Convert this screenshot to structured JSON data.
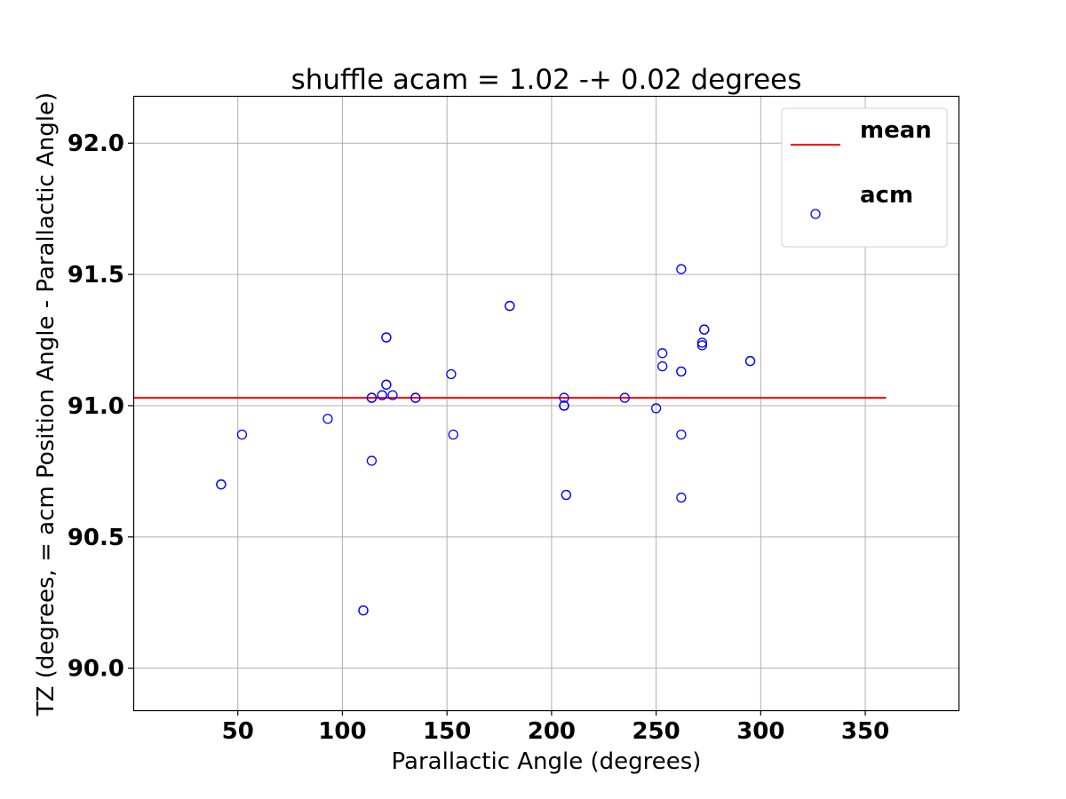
{
  "chart_data": {
    "type": "scatter",
    "title": "shuffle acam = 1.02 -+ 0.02  degrees",
    "xlabel": "Parallactic Angle (degrees)",
    "ylabel": "TZ (degrees, = acm Position Angle - Parallactic Angle)",
    "xlim": [
      0,
      395
    ],
    "ylim": [
      89.84,
      92.18
    ],
    "xticks": [
      50,
      100,
      150,
      200,
      250,
      300,
      350
    ],
    "yticks": [
      90.0,
      90.5,
      91.0,
      91.5,
      92.0
    ],
    "xtick_labels": [
      "50",
      "100",
      "150",
      "200",
      "250",
      "300",
      "350"
    ],
    "ytick_labels": [
      "90.0",
      "90.5",
      "91.0",
      "91.5",
      "92.0"
    ],
    "grid": true,
    "legend_position": "top-right",
    "mean_line": {
      "name": "mean",
      "y": 91.03,
      "x_range": [
        0,
        360
      ],
      "color": "#ff0000"
    },
    "series": [
      {
        "name": "acm",
        "color": "#0000ff",
        "x": [
          42,
          42,
          52,
          93,
          110,
          110,
          114,
          114,
          114,
          119,
          119,
          121,
          121,
          121,
          121,
          124,
          135,
          135,
          152,
          153,
          180,
          180,
          206,
          206,
          206,
          206,
          207,
          207,
          235,
          250,
          253,
          253,
          262,
          262,
          262,
          262,
          262,
          272,
          272,
          273,
          273,
          295,
          295
        ],
        "y": [
          90.7,
          90.7,
          90.89,
          90.95,
          90.22,
          90.22,
          91.03,
          91.03,
          90.79,
          91.04,
          91.04,
          91.08,
          91.08,
          91.26,
          91.26,
          91.04,
          91.03,
          91.03,
          91.12,
          90.89,
          91.38,
          91.38,
          91.03,
          91.0,
          91.0,
          91.0,
          90.66,
          90.66,
          91.03,
          90.99,
          91.2,
          91.15,
          91.13,
          91.13,
          90.89,
          90.65,
          91.52,
          91.23,
          91.24,
          91.29,
          91.29,
          91.17,
          91.17
        ]
      }
    ]
  }
}
